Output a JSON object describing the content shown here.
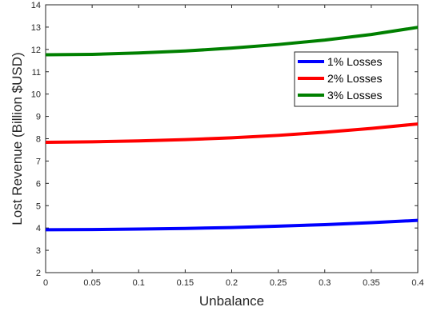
{
  "chart_data": {
    "type": "line",
    "title": "",
    "xlabel": "Unbalance",
    "ylabel": "Lost Revenue (Billion $USD)",
    "xlim": [
      0,
      0.4
    ],
    "ylim": [
      2,
      14
    ],
    "x_ticks": [
      0,
      0.05,
      0.1,
      0.15,
      0.2,
      0.25,
      0.3,
      0.35,
      0.4
    ],
    "x_tick_labels": [
      "0",
      "0.05",
      "0.1",
      "0.15",
      "0.2",
      "0.25",
      "0.3",
      "0.35",
      "0.4"
    ],
    "y_ticks": [
      2,
      3,
      4,
      5,
      6,
      7,
      8,
      9,
      10,
      11,
      12,
      13,
      14
    ],
    "y_tick_labels": [
      "2",
      "3",
      "4",
      "5",
      "6",
      "7",
      "8",
      "9",
      "10",
      "11",
      "12",
      "13",
      "14"
    ],
    "grid": false,
    "legend_position": "upper-right",
    "x": [
      0,
      0.05,
      0.1,
      0.15,
      0.2,
      0.25,
      0.3,
      0.35,
      0.4
    ],
    "series": [
      {
        "name": "1% Losses",
        "color": "#0000ff",
        "values": [
          3.92,
          3.93,
          3.95,
          3.98,
          4.02,
          4.08,
          4.15,
          4.24,
          4.34
        ]
      },
      {
        "name": "2% Losses",
        "color": "#ff0000",
        "values": [
          7.84,
          7.86,
          7.9,
          7.96,
          8.04,
          8.15,
          8.29,
          8.46,
          8.66
        ]
      },
      {
        "name": "3% Losses",
        "color": "#008000",
        "values": [
          11.76,
          11.78,
          11.84,
          11.93,
          12.06,
          12.22,
          12.42,
          12.67,
          12.99
        ]
      }
    ]
  }
}
